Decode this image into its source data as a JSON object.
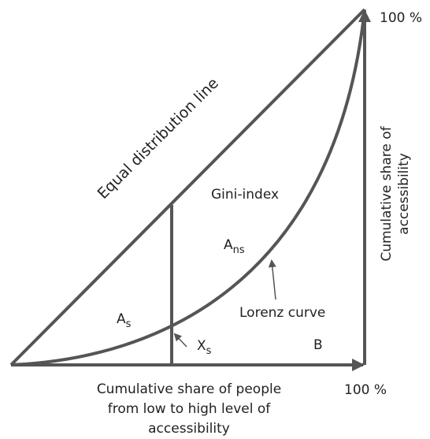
{
  "top_axis_label": "100 %",
  "bottom_axis_label": "100 %",
  "equal_line_label": "Equal distribution line",
  "gini_label": "Gini-index",
  "area_ns": {
    "main": "A",
    "sub": "ns"
  },
  "area_s": {
    "main": "A",
    "sub": "s"
  },
  "point_x": {
    "main": "X",
    "sub": "s"
  },
  "area_b": "B",
  "lorenz_label": "Lorenz curve",
  "y_axis_title": [
    "Cumulative share of",
    "accessibility"
  ],
  "x_axis_title": [
    "Cumulative share of people",
    "from low to high level of",
    "accessibility"
  ]
}
